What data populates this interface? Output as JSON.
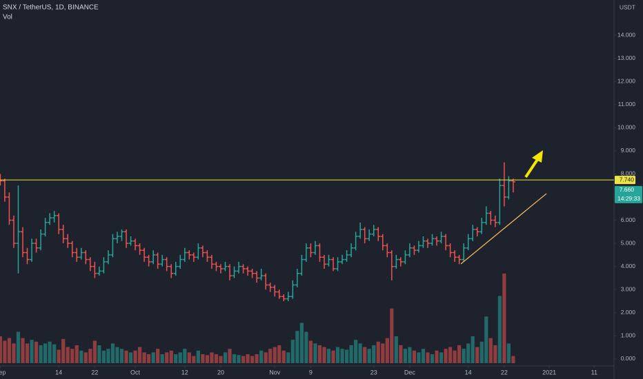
{
  "chart_data": {
    "type": "ohlc",
    "title": "SNX / TetherUS, 1D, BINANCE",
    "y_unit": "USDT",
    "up_color": "#26a69a",
    "down_color": "#ef5350",
    "x": [
      0,
      1,
      2,
      3,
      4,
      5,
      6,
      7,
      8,
      9,
      10,
      11,
      12,
      13,
      14,
      15,
      16,
      17,
      18,
      19,
      20,
      21,
      22,
      23,
      24,
      25,
      26,
      27,
      28,
      29,
      30,
      31,
      32,
      33,
      34,
      35,
      36,
      37,
      38,
      39,
      40,
      41,
      42,
      43,
      44,
      45,
      46,
      47,
      48,
      49,
      50,
      51,
      52,
      53,
      54,
      55,
      56,
      57,
      58,
      59,
      60,
      61,
      62,
      63,
      64,
      65,
      66,
      67,
      68,
      69,
      70,
      71,
      72,
      73,
      74,
      75,
      76,
      77,
      78,
      79,
      80,
      81,
      82,
      83,
      84,
      85,
      86,
      87,
      88,
      89,
      90,
      91,
      92,
      93,
      94,
      95,
      96,
      97,
      98,
      99,
      100,
      101,
      102,
      103,
      104,
      105,
      106,
      107,
      108,
      109,
      110,
      111,
      112,
      113,
      114
    ],
    "ohlc": [
      [
        7.9,
        8.0,
        7.5,
        7.7
      ],
      [
        7.7,
        7.8,
        6.8,
        7.0
      ],
      [
        7.0,
        7.2,
        5.8,
        6.0
      ],
      [
        6.0,
        6.2,
        4.8,
        5.0
      ],
      [
        5.0,
        7.5,
        3.7,
        5.5
      ],
      [
        5.5,
        5.7,
        4.4,
        4.6
      ],
      [
        4.6,
        4.8,
        4.1,
        4.3
      ],
      [
        4.3,
        5.2,
        4.2,
        5.0
      ],
      [
        5.0,
        5.2,
        4.6,
        4.8
      ],
      [
        4.8,
        5.6,
        4.7,
        5.4
      ],
      [
        5.4,
        6.1,
        5.3,
        5.9
      ],
      [
        5.9,
        6.3,
        5.8,
        6.1
      ],
      [
        6.1,
        6.4,
        5.9,
        6.2
      ],
      [
        6.2,
        6.3,
        5.4,
        5.6
      ],
      [
        5.6,
        5.8,
        5.0,
        5.2
      ],
      [
        5.2,
        5.4,
        4.8,
        5.0
      ],
      [
        5.0,
        5.1,
        4.4,
        4.6
      ],
      [
        4.6,
        4.8,
        4.2,
        4.4
      ],
      [
        4.4,
        4.8,
        4.3,
        4.6
      ],
      [
        4.6,
        4.7,
        4.1,
        4.3
      ],
      [
        4.3,
        4.4,
        3.8,
        4.0
      ],
      [
        4.0,
        4.2,
        3.5,
        3.7
      ],
      [
        3.7,
        4.0,
        3.6,
        3.8
      ],
      [
        3.8,
        4.4,
        3.7,
        4.2
      ],
      [
        4.2,
        4.7,
        4.1,
        4.5
      ],
      [
        4.5,
        5.4,
        4.4,
        5.2
      ],
      [
        5.2,
        5.5,
        5.0,
        5.3
      ],
      [
        5.3,
        5.6,
        5.1,
        5.5
      ],
      [
        5.5,
        5.6,
        4.8,
        5.0
      ],
      [
        5.0,
        5.3,
        4.9,
        5.1
      ],
      [
        5.1,
        5.2,
        4.7,
        4.9
      ],
      [
        4.9,
        5.0,
        4.5,
        4.7
      ],
      [
        4.7,
        4.8,
        4.2,
        4.4
      ],
      [
        4.4,
        4.5,
        4.0,
        4.2
      ],
      [
        4.2,
        4.7,
        4.1,
        4.5
      ],
      [
        4.5,
        4.6,
        3.9,
        4.1
      ],
      [
        4.1,
        4.5,
        4.0,
        4.3
      ],
      [
        4.3,
        4.4,
        3.8,
        4.0
      ],
      [
        4.0,
        4.1,
        3.5,
        3.7
      ],
      [
        3.7,
        4.2,
        3.6,
        4.0
      ],
      [
        4.0,
        4.5,
        3.9,
        4.3
      ],
      [
        4.3,
        4.8,
        4.2,
        4.6
      ],
      [
        4.6,
        4.7,
        4.3,
        4.5
      ],
      [
        4.5,
        4.6,
        4.2,
        4.4
      ],
      [
        4.4,
        5.0,
        4.3,
        4.8
      ],
      [
        4.8,
        4.9,
        4.4,
        4.6
      ],
      [
        4.6,
        4.7,
        4.2,
        4.4
      ],
      [
        4.4,
        4.5,
        3.9,
        4.1
      ],
      [
        4.1,
        4.2,
        3.8,
        4.0
      ],
      [
        4.0,
        4.1,
        3.7,
        3.9
      ],
      [
        3.9,
        4.2,
        3.8,
        4.0
      ],
      [
        4.0,
        4.1,
        3.4,
        3.6
      ],
      [
        3.6,
        4.0,
        3.5,
        3.8
      ],
      [
        3.8,
        4.2,
        3.7,
        4.0
      ],
      [
        4.0,
        4.1,
        3.7,
        3.9
      ],
      [
        3.9,
        4.0,
        3.6,
        3.8
      ],
      [
        3.8,
        3.9,
        3.5,
        3.7
      ],
      [
        3.7,
        3.8,
        3.3,
        3.5
      ],
      [
        3.5,
        3.9,
        3.4,
        3.6
      ],
      [
        3.6,
        3.7,
        3.0,
        3.2
      ],
      [
        3.2,
        3.3,
        2.9,
        3.1
      ],
      [
        3.1,
        3.2,
        2.7,
        2.9
      ],
      [
        2.9,
        3.0,
        2.6,
        2.7
      ],
      [
        2.7,
        2.8,
        2.5,
        2.6
      ],
      [
        2.6,
        2.9,
        2.5,
        2.7
      ],
      [
        2.7,
        3.4,
        2.6,
        3.2
      ],
      [
        3.2,
        3.9,
        3.1,
        3.7
      ],
      [
        3.7,
        4.5,
        3.6,
        4.3
      ],
      [
        4.3,
        5.0,
        4.2,
        4.8
      ],
      [
        4.8,
        5.0,
        4.4,
        4.6
      ],
      [
        4.6,
        5.1,
        4.5,
        4.9
      ],
      [
        4.9,
        5.0,
        4.2,
        4.4
      ],
      [
        4.4,
        4.5,
        3.9,
        4.1
      ],
      [
        4.1,
        4.5,
        4.0,
        4.3
      ],
      [
        4.3,
        4.4,
        3.8,
        3.9
      ],
      [
        3.9,
        4.4,
        3.8,
        4.2
      ],
      [
        4.2,
        4.5,
        4.1,
        4.3
      ],
      [
        4.3,
        4.7,
        4.2,
        4.5
      ],
      [
        4.5,
        5.0,
        4.4,
        4.8
      ],
      [
        4.8,
        5.5,
        4.7,
        5.3
      ],
      [
        5.3,
        5.9,
        5.2,
        5.6
      ],
      [
        5.6,
        5.7,
        5.0,
        5.2
      ],
      [
        5.2,
        5.6,
        5.1,
        5.4
      ],
      [
        5.4,
        5.8,
        5.3,
        5.6
      ],
      [
        5.6,
        5.7,
        5.1,
        5.3
      ],
      [
        5.3,
        5.4,
        4.7,
        4.9
      ],
      [
        4.9,
        5.0,
        4.4,
        4.6
      ],
      [
        4.6,
        4.7,
        3.4,
        4.0
      ],
      [
        4.0,
        4.5,
        3.9,
        4.3
      ],
      [
        4.3,
        4.4,
        4.0,
        4.2
      ],
      [
        4.2,
        4.7,
        4.1,
        4.5
      ],
      [
        4.5,
        5.0,
        4.4,
        4.8
      ],
      [
        4.8,
        4.9,
        4.5,
        4.7
      ],
      [
        4.7,
        5.1,
        4.6,
        4.9
      ],
      [
        4.9,
        5.3,
        4.8,
        5.1
      ],
      [
        5.1,
        5.2,
        4.8,
        5.0
      ],
      [
        5.0,
        5.4,
        4.9,
        5.2
      ],
      [
        5.2,
        5.3,
        4.9,
        5.1
      ],
      [
        5.1,
        5.5,
        5.0,
        5.3
      ],
      [
        5.3,
        5.4,
        4.7,
        4.9
      ],
      [
        4.9,
        5.0,
        4.4,
        4.6
      ],
      [
        4.6,
        4.7,
        4.2,
        4.4
      ],
      [
        4.4,
        4.5,
        4.1,
        4.3
      ],
      [
        4.3,
        5.0,
        4.2,
        4.8
      ],
      [
        4.8,
        5.4,
        4.7,
        5.2
      ],
      [
        5.2,
        5.8,
        5.1,
        5.6
      ],
      [
        5.6,
        5.7,
        5.3,
        5.5
      ],
      [
        5.5,
        6.1,
        5.4,
        5.9
      ],
      [
        5.9,
        6.6,
        5.8,
        6.3
      ],
      [
        6.3,
        6.4,
        5.8,
        6.0
      ],
      [
        6.0,
        6.2,
        5.7,
        5.9
      ],
      [
        5.9,
        7.8,
        5.8,
        7.5
      ],
      [
        7.5,
        8.5,
        6.6,
        7.0
      ],
      [
        7.0,
        7.9,
        6.9,
        7.7
      ],
      [
        7.7,
        7.8,
        7.2,
        7.66
      ]
    ],
    "volume": {
      "name": "Vol",
      "values": [
        30,
        25,
        28,
        22,
        35,
        28,
        22,
        26,
        24,
        20,
        22,
        24,
        21,
        15,
        27,
        18,
        16,
        20,
        14,
        12,
        16,
        25,
        20,
        14,
        16,
        22,
        18,
        16,
        14,
        12,
        14,
        18,
        12,
        10,
        12,
        16,
        10,
        12,
        14,
        10,
        12,
        16,
        12,
        8,
        14,
        10,
        9,
        12,
        10,
        8,
        12,
        16,
        10,
        9,
        8,
        10,
        8,
        10,
        14,
        12,
        16,
        18,
        20,
        14,
        12,
        26,
        36,
        45,
        35,
        25,
        22,
        20,
        18,
        16,
        14,
        18,
        16,
        15,
        20,
        26,
        22,
        18,
        16,
        20,
        24,
        22,
        28,
        61,
        30,
        20,
        16,
        18,
        14,
        12,
        16,
        12,
        10,
        14,
        12,
        16,
        18,
        14,
        20,
        16,
        22,
        30,
        18,
        24,
        52,
        28,
        20,
        75,
        100,
        22,
        8
      ]
    },
    "xlim": [
      -0.06,
      136.4
    ],
    "xticks": [
      {
        "value": 0,
        "label": "Sep"
      },
      {
        "value": 13,
        "label": "14"
      },
      {
        "value": 21,
        "label": "22"
      },
      {
        "value": 30,
        "label": "Oct"
      },
      {
        "value": 41,
        "label": "12"
      },
      {
        "value": 49,
        "label": "20"
      },
      {
        "value": 61,
        "label": "Nov"
      },
      {
        "value": 69,
        "label": "9"
      },
      {
        "value": 83,
        "label": "23"
      },
      {
        "value": 91,
        "label": "Dec"
      },
      {
        "value": 104,
        "label": "14"
      },
      {
        "value": 112,
        "label": "22"
      },
      {
        "value": 122,
        "label": "2021"
      },
      {
        "value": 132,
        "label": "11"
      }
    ],
    "ylim": [
      -0.27,
      15.52
    ],
    "yticks": [
      {
        "value": 0,
        "label": "0.000"
      },
      {
        "value": 1,
        "label": "1.000"
      },
      {
        "value": 2,
        "label": "2.000"
      },
      {
        "value": 3,
        "label": "3.000"
      },
      {
        "value": 4,
        "label": "4.000"
      },
      {
        "value": 5,
        "label": "5.000"
      },
      {
        "value": 6,
        "label": "6.000"
      },
      {
        "value": 7,
        "label": "7.000"
      },
      {
        "value": 8,
        "label": "8.000"
      },
      {
        "value": 9,
        "label": "9.000"
      },
      {
        "value": 10,
        "label": "10.000"
      },
      {
        "value": 11,
        "label": "11.000"
      },
      {
        "value": 12,
        "label": "12.000"
      },
      {
        "value": 13,
        "label": "13.000"
      },
      {
        "value": 14,
        "label": "14.000"
      }
    ],
    "price_line": {
      "value": 7.74,
      "label": "7.740",
      "color": "#f0e442"
    },
    "last_price": {
      "value": 7.66,
      "label": "7.660"
    },
    "countdown": "14:29:33"
  }
}
